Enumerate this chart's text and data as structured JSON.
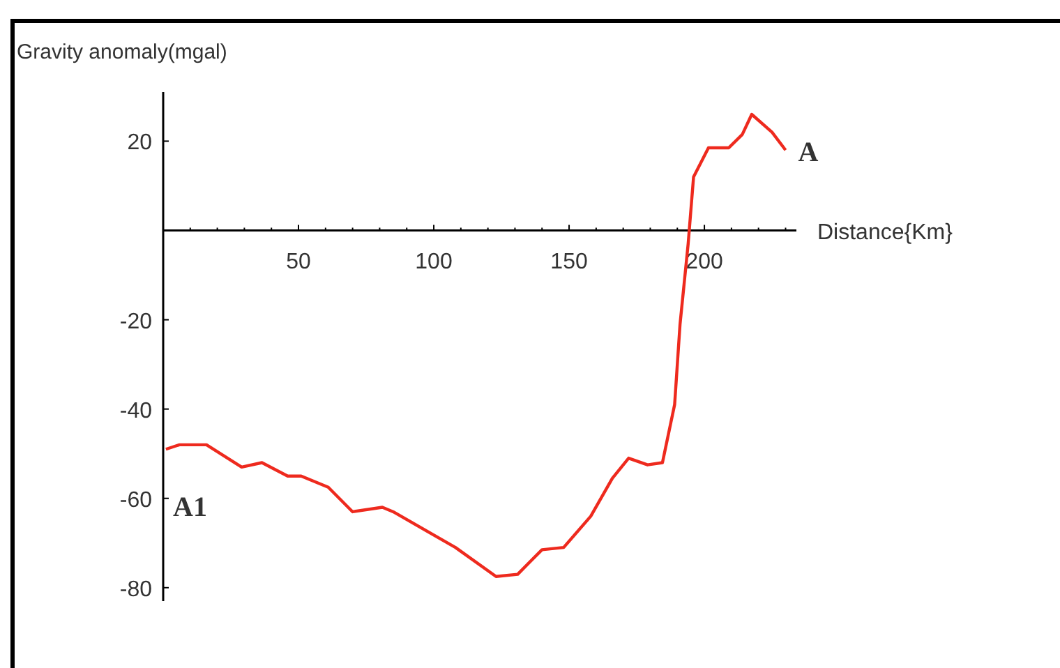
{
  "chart_data": {
    "type": "line",
    "ylabel": "Gravity anomaly(mgal)",
    "xlabel": "Distance{Km}",
    "x": [
      1,
      6,
      16,
      29,
      36.5,
      46,
      51,
      61,
      70,
      81,
      85,
      108,
      123,
      131,
      140,
      148,
      158,
      166,
      172,
      179,
      184.5,
      189,
      191,
      194,
      196,
      201.5,
      209,
      214,
      217.5,
      225,
      230
    ],
    "series": [
      {
        "color": "#ee2a1e",
        "values": [
          -49,
          -48,
          -48,
          -53,
          -52,
          -55,
          -55,
          -57.5,
          -63,
          -62,
          -63,
          -71,
          -77.5,
          -77,
          -71.5,
          -71,
          -64,
          -55.5,
          -51,
          -52.5,
          -52,
          -39,
          -21,
          -3,
          12,
          18.5,
          18.5,
          21.5,
          26,
          22,
          18
        ]
      }
    ],
    "xlim": [
      0,
      234
    ],
    "ylim": [
      -83,
      31
    ],
    "xticks": [
      {
        "value": 10,
        "label": null
      },
      {
        "value": 20,
        "label": null
      },
      {
        "value": 30,
        "label": null
      },
      {
        "value": 40,
        "label": null
      },
      50,
      {
        "value": 60,
        "label": null
      },
      {
        "value": 70,
        "label": null
      },
      {
        "value": 80,
        "label": null
      },
      {
        "value": 90,
        "label": null
      },
      100,
      {
        "value": 110,
        "label": null
      },
      {
        "value": 120,
        "label": null
      },
      {
        "value": 130,
        "label": null
      },
      {
        "value": 140,
        "label": null
      },
      150,
      {
        "value": 160,
        "label": null
      },
      {
        "value": 170,
        "label": null
      },
      {
        "value": 180,
        "label": null
      },
      {
        "value": 190,
        "label": null
      },
      200,
      {
        "value": 210,
        "label": null
      },
      {
        "value": 220,
        "label": null
      },
      {
        "value": 230,
        "label": null
      }
    ],
    "yticks": [
      -80,
      -60,
      -40,
      -20,
      20
    ],
    "annotations": [
      {
        "text": "A",
        "x": 230,
        "y": 18
      },
      "A1"
    ],
    "grid": false,
    "marker": "none",
    "line_style": "solid"
  }
}
